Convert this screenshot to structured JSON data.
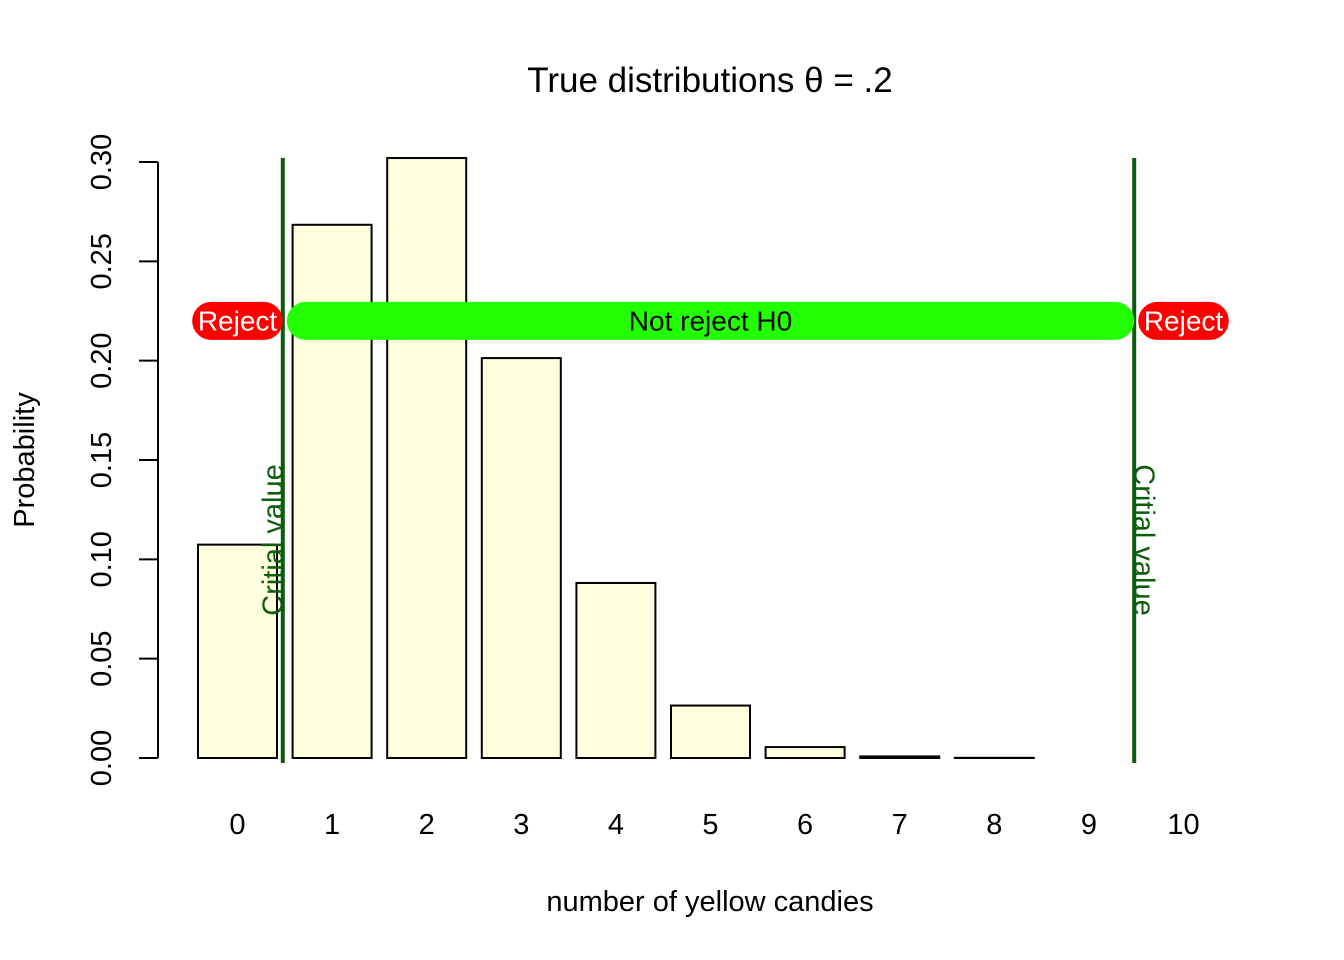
{
  "chart_data": {
    "type": "bar",
    "title": "True distributions θ = .2",
    "xlabel": "number of yellow candies",
    "ylabel": "Probability",
    "categories": [
      "0",
      "1",
      "2",
      "3",
      "4",
      "5",
      "6",
      "7",
      "8",
      "9",
      "10"
    ],
    "values": [
      0.1074,
      0.2684,
      0.302,
      0.2013,
      0.0881,
      0.0264,
      0.0055,
      0.0008,
      0.0001,
      0.0,
      0.0
    ],
    "ylim": [
      0,
      0.3
    ],
    "yticks": [
      "0.00",
      "0.05",
      "0.10",
      "0.15",
      "0.20",
      "0.25",
      "0.30"
    ],
    "grid": false,
    "colors": {
      "bar_fill": "#ffffdd",
      "bar_stroke": "#000000",
      "critical_line": "#0b5c0b",
      "reject_band": "#ff0000",
      "accept_band": "#22ff00"
    },
    "critical_values": [
      {
        "x": 0.5,
        "label": "Critial value"
      },
      {
        "x": 9.5,
        "label": "Critial value"
      }
    ],
    "regions": [
      {
        "label": "Reject",
        "from": -0.5,
        "to": 0.5,
        "color": "#ff0000",
        "text_color": "#ffffff"
      },
      {
        "label": "Not reject H0",
        "from": 0.5,
        "to": 9.5,
        "color": "#22ff00",
        "text_color": "#000000"
      },
      {
        "label": "Reject",
        "from": 9.5,
        "to": 10.5,
        "color": "#ff0000",
        "text_color": "#ffffff"
      }
    ],
    "region_y": 0.22
  }
}
